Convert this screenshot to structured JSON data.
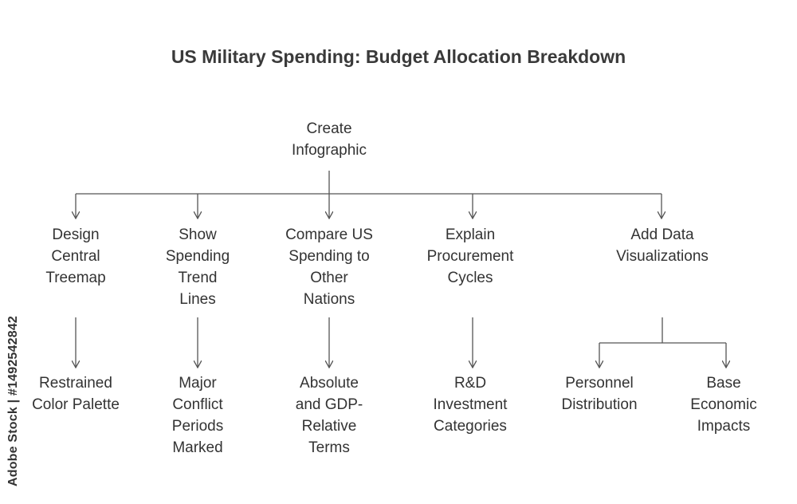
{
  "title": "US Military Spending: Budget Allocation Breakdown",
  "root": {
    "line1": "Create",
    "line2": "Infographic"
  },
  "branches": {
    "treemap": {
      "lines": [
        "Design",
        "Central",
        "Treemap"
      ],
      "child": [
        "Restrained",
        "Color Palette"
      ]
    },
    "trend": {
      "lines": [
        "Show",
        "Spending",
        "Trend",
        "Lines"
      ],
      "child": [
        "Major",
        "Conflict",
        "Periods",
        "Marked"
      ]
    },
    "compare": {
      "lines": [
        "Compare US",
        "Spending to",
        "Other",
        "Nations"
      ],
      "child": [
        "Absolute",
        "and GDP-",
        "Relative",
        "Terms"
      ]
    },
    "procure": {
      "lines": [
        "Explain",
        "Procurement",
        "Cycles"
      ],
      "child": [
        "R&D",
        "Investment",
        "Categories"
      ]
    },
    "dataviz": {
      "lines": [
        "Add Data",
        "Visualizations"
      ],
      "children": [
        [
          "Personnel",
          "Distribution"
        ],
        [
          "Base",
          "Economic",
          "Impacts"
        ]
      ]
    }
  },
  "watermark": "Adobe Stock | #1492542842",
  "colors": {
    "line": "#555555",
    "text": "#333333"
  }
}
